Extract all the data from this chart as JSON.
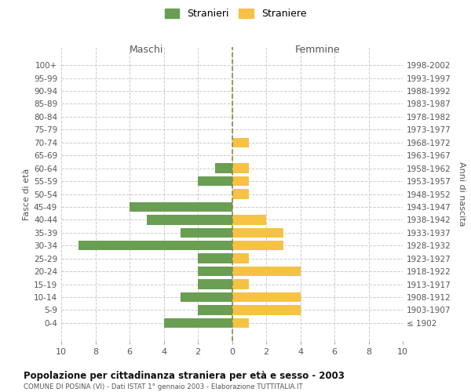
{
  "age_groups": [
    "100+",
    "95-99",
    "90-94",
    "85-89",
    "80-84",
    "75-79",
    "70-74",
    "65-69",
    "60-64",
    "55-59",
    "50-54",
    "45-49",
    "40-44",
    "35-39",
    "30-34",
    "25-29",
    "20-24",
    "15-19",
    "10-14",
    "5-9",
    "0-4"
  ],
  "birth_years": [
    "≤ 1902",
    "1903-1907",
    "1908-1912",
    "1913-1917",
    "1918-1922",
    "1923-1927",
    "1928-1932",
    "1933-1937",
    "1938-1942",
    "1943-1947",
    "1948-1952",
    "1953-1957",
    "1958-1962",
    "1963-1967",
    "1968-1972",
    "1973-1977",
    "1978-1982",
    "1983-1987",
    "1988-1992",
    "1993-1997",
    "1998-2002"
  ],
  "males": [
    0,
    0,
    0,
    0,
    0,
    0,
    0,
    0,
    1,
    2,
    0,
    6,
    5,
    3,
    9,
    2,
    2,
    2,
    3,
    2,
    4
  ],
  "females": [
    0,
    0,
    0,
    0,
    0,
    0,
    1,
    0,
    1,
    1,
    1,
    0,
    2,
    3,
    3,
    1,
    4,
    1,
    4,
    4,
    1
  ],
  "male_color": "#6a9e52",
  "female_color": "#f5c243",
  "dashed_line_color": "#8a8a4a",
  "grid_color": "#cccccc",
  "bg_color": "#ffffff",
  "title": "Popolazione per cittadinanza straniera per età e sesso - 2003",
  "subtitle": "COMUNE DI POSINA (VI) - Dati ISTAT 1° gennaio 2003 - Elaborazione TUTTITALIA.IT",
  "xlabel_left": "Maschi",
  "xlabel_right": "Femmine",
  "ylabel_left": "Fasce di età",
  "ylabel_right": "Anni di nascita",
  "legend_male": "Stranieri",
  "legend_female": "Straniere",
  "xlim": 10
}
